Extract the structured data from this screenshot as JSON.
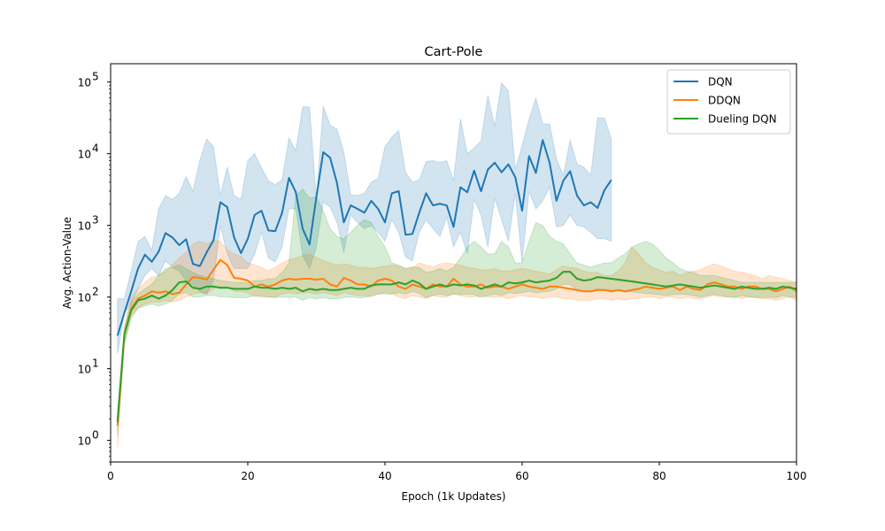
{
  "chart_data": {
    "type": "line",
    "title": "Cart-Pole",
    "xlabel": "Epoch (1k Updates)",
    "ylabel": "Avg. Action-Value",
    "xlim": [
      0,
      100
    ],
    "ylim": [
      0.5,
      180000
    ],
    "yscale": "log",
    "grid": false,
    "legend_position": "top-right",
    "x_ticks": [
      0,
      20,
      40,
      60,
      80,
      100
    ],
    "y_ticks": [
      1,
      10,
      100,
      1000,
      10000,
      100000
    ],
    "y_tick_labels": [
      {
        "base": "10",
        "exp": "0"
      },
      {
        "base": "10",
        "exp": "1"
      },
      {
        "base": "10",
        "exp": "2"
      },
      {
        "base": "10",
        "exp": "3"
      },
      {
        "base": "10",
        "exp": "4"
      },
      {
        "base": "10",
        "exp": "5"
      }
    ],
    "series": [
      {
        "name": "DQN",
        "color": "#1f77b4",
        "x": [
          1,
          2,
          3,
          4,
          5,
          6,
          7,
          8,
          9,
          10,
          11,
          12,
          13,
          14,
          15,
          16,
          17,
          18,
          19,
          20,
          21,
          22,
          23,
          24,
          25,
          26,
          27,
          28,
          29,
          30,
          31,
          32,
          33,
          34,
          35,
          36,
          37,
          38,
          39,
          40,
          41,
          42,
          43,
          44,
          45,
          46,
          47,
          48,
          49,
          50,
          51,
          52,
          53,
          54,
          55,
          56,
          57,
          58,
          59,
          60,
          61,
          62,
          63,
          64,
          65,
          66,
          67,
          68,
          69,
          70,
          71,
          72,
          73
        ],
        "y": [
          29,
          60,
          120,
          250,
          390,
          310,
          430,
          780,
          680,
          530,
          640,
          290,
          270,
          420,
          620,
          2100,
          1800,
          680,
          410,
          650,
          1400,
          1600,
          850,
          830,
          1500,
          4600,
          2900,
          900,
          540,
          2500,
          10500,
          8800,
          3900,
          1100,
          1900,
          1700,
          1500,
          2200,
          1700,
          1100,
          2800,
          3000,
          740,
          760,
          1500,
          2800,
          1900,
          2000,
          1900,
          950,
          3400,
          2900,
          5800,
          3000,
          6000,
          7500,
          5500,
          7100,
          4700,
          1600,
          9300,
          5400,
          15500,
          7500,
          2200,
          4200,
          5700,
          2600,
          1900,
          2100,
          1750,
          3100,
          4300
        ],
        "upper": [
          95,
          95,
          230,
          600,
          700,
          450,
          1700,
          2600,
          2300,
          2800,
          4800,
          3000,
          8000,
          16000,
          12500,
          2600,
          6500,
          2600,
          2300,
          8000,
          10000,
          6300,
          4200,
          3700,
          4300,
          16500,
          11000,
          45000,
          45000,
          2300,
          46000,
          25000,
          22000,
          10500,
          2700,
          2600,
          2800,
          4000,
          4500,
          12500,
          17000,
          21000,
          5500,
          4000,
          4300,
          7800,
          8000,
          7500,
          8000,
          4200,
          31000,
          10000,
          12000,
          15000,
          65000,
          24000,
          98000,
          75000,
          6000,
          13000,
          30000,
          60000,
          26000,
          26000,
          8500,
          5000,
          15500,
          7200,
          6500,
          5000,
          31500,
          31500,
          16000
        ],
        "lower": [
          16,
          60,
          80,
          130,
          200,
          250,
          200,
          320,
          260,
          230,
          170,
          150,
          120,
          110,
          170,
          1000,
          400,
          250,
          250,
          250,
          400,
          800,
          350,
          310,
          500,
          1700,
          1700,
          380,
          250,
          500,
          2100,
          1800,
          1100,
          420,
          1400,
          1100,
          900,
          1000,
          800,
          600,
          1200,
          800,
          360,
          320,
          800,
          1200,
          900,
          700,
          1300,
          500,
          800,
          400,
          2300,
          1400,
          500,
          2400,
          1200,
          600,
          2800,
          300,
          3000,
          1700,
          2200,
          3400,
          950,
          1000,
          1400,
          1000,
          950,
          800,
          650,
          650,
          600
        ]
      },
      {
        "name": "DDQN",
        "color": "#ff7f0e",
        "x": [
          1,
          2,
          3,
          4,
          5,
          6,
          7,
          8,
          9,
          10,
          11,
          12,
          13,
          14,
          15,
          16,
          17,
          18,
          19,
          20,
          21,
          22,
          23,
          24,
          25,
          26,
          27,
          28,
          29,
          30,
          31,
          32,
          33,
          34,
          35,
          36,
          37,
          38,
          39,
          40,
          41,
          42,
          43,
          44,
          45,
          46,
          47,
          48,
          49,
          50,
          51,
          52,
          53,
          54,
          55,
          56,
          57,
          58,
          59,
          60,
          61,
          62,
          63,
          64,
          65,
          66,
          67,
          68,
          69,
          70,
          71,
          72,
          73,
          74,
          75,
          76,
          77,
          78,
          79,
          80,
          81,
          82,
          83,
          84,
          85,
          86,
          87,
          88,
          89,
          90,
          91,
          92,
          93,
          94,
          95,
          96,
          97,
          98,
          99,
          100
        ],
        "y": [
          1.6,
          30,
          70,
          95,
          105,
          120,
          115,
          120,
          110,
          115,
          150,
          190,
          185,
          175,
          240,
          330,
          280,
          185,
          180,
          170,
          140,
          150,
          140,
          150,
          170,
          180,
          175,
          180,
          180,
          175,
          180,
          150,
          140,
          185,
          170,
          150,
          150,
          140,
          170,
          180,
          170,
          140,
          130,
          150,
          140,
          130,
          150,
          140,
          140,
          180,
          150,
          140,
          140,
          150,
          135,
          140,
          140,
          130,
          140,
          150,
          140,
          135,
          130,
          140,
          140,
          135,
          130,
          125,
          120,
          120,
          125,
          125,
          120,
          125,
          120,
          125,
          130,
          140,
          135,
          130,
          135,
          140,
          125,
          140,
          130,
          125,
          150,
          160,
          150,
          140,
          140,
          130,
          140,
          140,
          130,
          130,
          120,
          130,
          140,
          120
        ],
        "upper": [
          2.2,
          38,
          100,
          130,
          160,
          190,
          200,
          230,
          280,
          350,
          420,
          550,
          600,
          550,
          620,
          600,
          450,
          400,
          370,
          300,
          280,
          260,
          230,
          260,
          300,
          330,
          350,
          380,
          400,
          360,
          320,
          300,
          280,
          290,
          280,
          260,
          260,
          250,
          260,
          270,
          280,
          270,
          250,
          260,
          300,
          280,
          260,
          290,
          300,
          290,
          280,
          260,
          250,
          240,
          240,
          250,
          230,
          230,
          240,
          250,
          240,
          230,
          220,
          210,
          240,
          270,
          260,
          250,
          230,
          220,
          220,
          200,
          200,
          230,
          300,
          500,
          400,
          300,
          260,
          240,
          220,
          230,
          200,
          220,
          230,
          240,
          270,
          290,
          270,
          250,
          230,
          220,
          210,
          200,
          180,
          200,
          190,
          180,
          170,
          160
        ],
        "lower": [
          0.8,
          22,
          55,
          70,
          80,
          85,
          85,
          90,
          85,
          90,
          100,
          110,
          115,
          110,
          130,
          140,
          140,
          120,
          120,
          115,
          100,
          105,
          100,
          100,
          110,
          115,
          110,
          115,
          115,
          110,
          115,
          110,
          105,
          115,
          110,
          105,
          105,
          100,
          110,
          115,
          110,
          100,
          95,
          105,
          100,
          95,
          105,
          100,
          100,
          110,
          105,
          100,
          100,
          105,
          100,
          100,
          100,
          95,
          100,
          105,
          100,
          100,
          95,
          100,
          100,
          95,
          95,
          90,
          90,
          90,
          95,
          95,
          90,
          95,
          90,
          95,
          95,
          100,
          100,
          95,
          100,
          100,
          95,
          100,
          95,
          95,
          100,
          105,
          100,
          100,
          100,
          95,
          100,
          100,
          95,
          95,
          90,
          95,
          100,
          90
        ]
      },
      {
        "name": "Dueling DQN",
        "color": "#2ca02c",
        "x": [
          1,
          2,
          3,
          4,
          5,
          6,
          7,
          8,
          9,
          10,
          11,
          12,
          13,
          14,
          15,
          16,
          17,
          18,
          19,
          20,
          21,
          22,
          23,
          24,
          25,
          26,
          27,
          28,
          29,
          30,
          31,
          32,
          33,
          34,
          35,
          36,
          37,
          38,
          39,
          40,
          41,
          42,
          43,
          44,
          45,
          46,
          47,
          48,
          49,
          50,
          51,
          52,
          53,
          54,
          55,
          56,
          57,
          58,
          59,
          60,
          61,
          62,
          63,
          64,
          65,
          66,
          67,
          68,
          69,
          70,
          71,
          72,
          73,
          74,
          75,
          76,
          77,
          78,
          79,
          80,
          81,
          82,
          83,
          84,
          85,
          86,
          87,
          88,
          89,
          90,
          91,
          92,
          93,
          94,
          95,
          96,
          97,
          98,
          99,
          100
        ],
        "y": [
          1.8,
          30,
          65,
          90,
          95,
          105,
          95,
          105,
          125,
          160,
          165,
          135,
          130,
          140,
          140,
          135,
          135,
          130,
          130,
          130,
          140,
          135,
          135,
          130,
          135,
          130,
          135,
          120,
          130,
          125,
          130,
          125,
          125,
          130,
          135,
          130,
          130,
          145,
          150,
          150,
          150,
          160,
          150,
          170,
          155,
          130,
          140,
          150,
          140,
          150,
          145,
          150,
          145,
          130,
          140,
          150,
          140,
          160,
          155,
          160,
          170,
          160,
          165,
          170,
          185,
          225,
          225,
          180,
          170,
          175,
          190,
          185,
          180,
          175,
          170,
          165,
          160,
          155,
          150,
          145,
          140,
          145,
          150,
          145,
          140,
          135,
          140,
          145,
          140,
          135,
          130,
          140,
          135,
          130,
          130,
          135,
          130,
          140,
          135,
          130
        ],
        "upper": [
          2.5,
          38,
          85,
          110,
          130,
          150,
          200,
          250,
          260,
          280,
          250,
          220,
          200,
          190,
          180,
          170,
          165,
          160,
          160,
          160,
          170,
          170,
          180,
          180,
          220,
          300,
          2600,
          3200,
          2400,
          2500,
          1600,
          900,
          700,
          650,
          800,
          1000,
          1200,
          1100,
          700,
          500,
          300,
          280,
          250,
          260,
          260,
          220,
          230,
          250,
          230,
          260,
          350,
          500,
          600,
          500,
          400,
          400,
          600,
          500,
          300,
          300,
          600,
          1100,
          1000,
          700,
          600,
          550,
          400,
          300,
          280,
          260,
          280,
          300,
          300,
          350,
          400,
          500,
          550,
          600,
          550,
          450,
          350,
          300,
          250,
          230,
          220,
          200,
          200,
          200,
          190,
          180,
          170,
          160,
          160,
          160,
          160,
          160,
          160,
          160,
          160,
          160
        ],
        "lower": [
          1.2,
          22,
          50,
          70,
          75,
          80,
          75,
          80,
          90,
          110,
          115,
          100,
          100,
          105,
          105,
          100,
          100,
          98,
          98,
          98,
          105,
          100,
          100,
          98,
          100,
          98,
          100,
          90,
          98,
          94,
          98,
          94,
          94,
          98,
          100,
          98,
          98,
          105,
          110,
          110,
          110,
          115,
          110,
          120,
          112,
          98,
          105,
          110,
          105,
          110,
          108,
          110,
          108,
          98,
          105,
          110,
          105,
          115,
          112,
          115,
          120,
          115,
          118,
          120,
          130,
          150,
          150,
          125,
          120,
          122,
          130,
          128,
          125,
          122,
          120,
          118,
          115,
          112,
          110,
          108,
          105,
          108,
          110,
          108,
          105,
          100,
          105,
          108,
          105,
          100,
          98,
          105,
          100,
          98,
          98,
          100,
          98,
          105,
          100,
          98
        ]
      }
    ]
  }
}
